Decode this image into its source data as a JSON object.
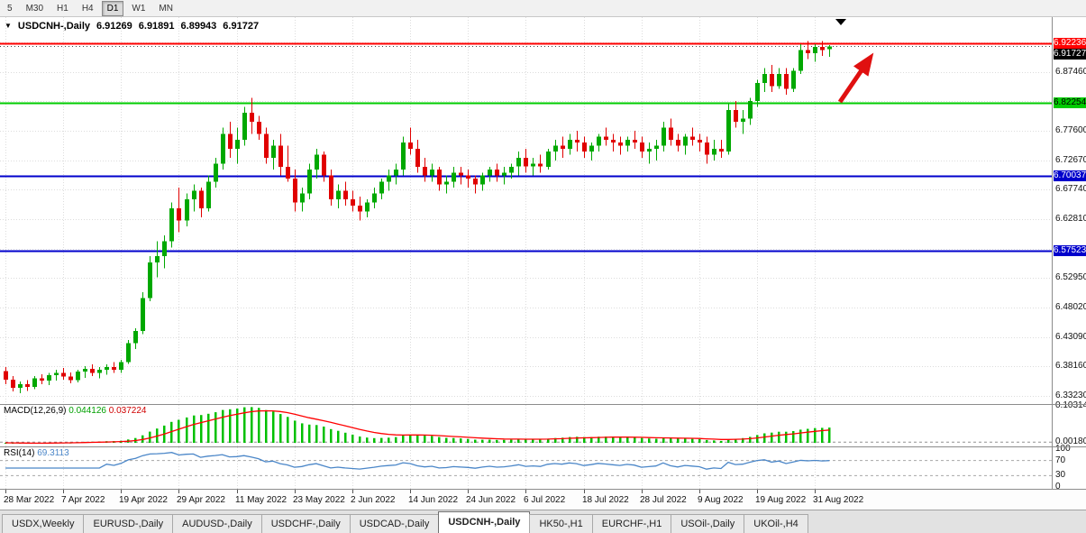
{
  "toolbar": {
    "timeframes": [
      {
        "label": "5",
        "active": false
      },
      {
        "label": "M30",
        "active": false
      },
      {
        "label": "H1",
        "active": false
      },
      {
        "label": "H4",
        "active": false
      },
      {
        "label": "D1",
        "active": true
      },
      {
        "label": "W1",
        "active": false
      },
      {
        "label": "MN",
        "active": false
      }
    ]
  },
  "chart": {
    "symbol_label": "USDCNH-,Daily",
    "ohlc": {
      "open": "6.91269",
      "high": "6.91891",
      "low": "6.89943",
      "close": "6.91727"
    },
    "levels": [
      {
        "label": "6.92236",
        "price": 6.92236,
        "line_color": "#ff0000",
        "line_width": 2,
        "dash": "",
        "badge_bg": "#ff0000",
        "badge_fg": "#ffffff",
        "name": "resistance-level"
      },
      {
        "label": "6.91727",
        "price": 6.91727,
        "line_color": "#404040",
        "line_width": 1,
        "dash": "1,3",
        "badge_bg": "#000000",
        "badge_fg": "#ffffff",
        "name": "bid-price"
      },
      {
        "label": "6.82254",
        "price": 6.82254,
        "line_color": "#00cc00",
        "line_width": 2,
        "dash": "",
        "badge_bg": "#00cc00",
        "badge_fg": "#000000",
        "name": "support-level-green"
      },
      {
        "label": "6.70037",
        "price": 6.70037,
        "line_color": "#0000cc",
        "line_width": 2,
        "dash": "",
        "badge_bg": "#0000cc",
        "badge_fg": "#ffffff",
        "name": "support-level-blue-1"
      },
      {
        "label": "6.57523",
        "price": 6.57523,
        "line_color": "#0000cc",
        "line_width": 2,
        "dash": "",
        "badge_bg": "#0000cc",
        "badge_fg": "#ffffff",
        "name": "support-level-blue-2"
      }
    ],
    "price_axis": {
      "labels": [
        "6.87460",
        "6.77600",
        "6.72670",
        "6.67740",
        "6.62810",
        "6.52950",
        "6.48020",
        "6.43090",
        "6.38160",
        "6.33230"
      ],
      "gridlines": [
        6.9239,
        6.8746,
        6.8253,
        6.776,
        6.7267,
        6.6774,
        6.6281,
        6.5788,
        6.5295,
        6.4802,
        6.4309,
        6.3816,
        6.3323
      ]
    }
  },
  "macd": {
    "label": "MACD(12,26,9)",
    "value1": "0.044126",
    "value2": "0.037224",
    "axis": [
      {
        "text": "0.10314",
        "v": 0.10314
      },
      {
        "text": "0.00180",
        "v": 0.0018
      }
    ],
    "zero_dash_value": 0.0018
  },
  "rsi": {
    "label": "RSI(14)",
    "value": "69.3113",
    "axis": [
      {
        "text": "100",
        "v": 100
      },
      {
        "text": "70",
        "v": 70
      },
      {
        "text": "30",
        "v": 30
      },
      {
        "text": "0",
        "v": 0
      }
    ],
    "dashed_levels": [
      70,
      30
    ]
  },
  "timeline": {
    "labels": [
      "28 Mar 2022",
      "7 Apr 2022",
      "19 Apr 2022",
      "29 Apr 2022",
      "11 May 2022",
      "23 May 2022",
      "2 Jun 2022",
      "14 Jun 2022",
      "24 Jun 2022",
      "6 Jul 2022",
      "18 Jul 2022",
      "28 Jul 2022",
      "9 Aug 2022",
      "19 Aug 2022",
      "31 Aug 2022"
    ],
    "indices": [
      0,
      8,
      16,
      24,
      32,
      40,
      48,
      56,
      64,
      72,
      80,
      88,
      96,
      104,
      112
    ]
  },
  "tabs": [
    {
      "label": "USDX,Weekly",
      "selected": false
    },
    {
      "label": "EURUSD-,Daily",
      "selected": false
    },
    {
      "label": "AUDUSD-,Daily",
      "selected": false
    },
    {
      "label": "USDCHF-,Daily",
      "selected": false
    },
    {
      "label": "USDCAD-,Daily",
      "selected": false
    },
    {
      "label": "USDCNH-,Daily",
      "selected": true
    },
    {
      "label": "HK50-,H1",
      "selected": false
    },
    {
      "label": "EURCHF-,H1",
      "selected": false
    },
    {
      "label": "USOil-,Daily",
      "selected": false
    },
    {
      "label": "UKOil-,H4",
      "selected": false
    }
  ],
  "colors": {
    "bull": "#00a800",
    "bear": "#e00000",
    "grid": "#dcdcdc",
    "macd_hist": "#00c000",
    "macd_signal": "#ff0000",
    "rsi_line": "#4a86c8",
    "arrow": "#e01010",
    "end_marker": "#000000"
  },
  "annotations": {
    "arrow_up_right": true,
    "chart_end_marker": true
  },
  "chart_data": {
    "type": "candlestick",
    "symbol": "USDCNH-",
    "timeframe": "Daily",
    "title": "USDCNH-,Daily 6.91269 6.91891 6.89943 6.91727",
    "y_range": [
      6.319,
      6.966
    ],
    "levels": [
      6.92236,
      6.82254,
      6.70037,
      6.57523
    ],
    "current": {
      "open": 6.91269,
      "high": 6.91891,
      "low": 6.89943,
      "close": 6.91727
    },
    "x_labels": [
      "28 Mar 2022",
      "7 Apr 2022",
      "19 Apr 2022",
      "29 Apr 2022",
      "11 May 2022",
      "23 May 2022",
      "2 Jun 2022",
      "14 Jun 2022",
      "24 Jun 2022",
      "6 Jul 2022",
      "18 Jul 2022",
      "28 Jul 2022",
      "9 Aug 2022",
      "19 Aug 2022",
      "31 Aug 2022"
    ],
    "x_label_indices": [
      0,
      8,
      16,
      24,
      32,
      40,
      48,
      56,
      64,
      72,
      80,
      88,
      96,
      104,
      112
    ],
    "indicators": [
      {
        "type": "MACD",
        "params": [
          12,
          26,
          9
        ],
        "current": [
          0.044126,
          0.037224
        ],
        "y_axis": [
          0.10314,
          0.0018
        ]
      },
      {
        "type": "RSI",
        "params": [
          14
        ],
        "current": 69.3113,
        "y_axis": [
          100,
          70,
          30,
          0
        ]
      }
    ],
    "candles": [
      [
        6.374,
        6.381,
        6.352,
        6.36
      ],
      [
        6.36,
        6.366,
        6.34,
        6.346
      ],
      [
        6.346,
        6.357,
        6.337,
        6.352
      ],
      [
        6.352,
        6.359,
        6.341,
        6.348
      ],
      [
        6.348,
        6.366,
        6.344,
        6.362
      ],
      [
        6.362,
        6.369,
        6.352,
        6.358
      ],
      [
        6.358,
        6.371,
        6.351,
        6.367
      ],
      [
        6.367,
        6.376,
        6.358,
        6.371
      ],
      [
        6.371,
        6.379,
        6.36,
        6.365
      ],
      [
        6.365,
        6.372,
        6.354,
        6.359
      ],
      [
        6.359,
        6.376,
        6.355,
        6.373
      ],
      [
        6.373,
        6.382,
        6.363,
        6.378
      ],
      [
        6.378,
        6.385,
        6.366,
        6.371
      ],
      [
        6.371,
        6.381,
        6.362,
        6.376
      ],
      [
        6.376,
        6.385,
        6.368,
        6.381
      ],
      [
        6.381,
        6.389,
        6.371,
        6.376
      ],
      [
        6.376,
        6.393,
        6.371,
        6.389
      ],
      [
        6.389,
        6.426,
        6.386,
        6.421
      ],
      [
        6.421,
        6.446,
        6.411,
        6.441
      ],
      [
        6.441,
        6.506,
        6.436,
        6.496
      ],
      [
        6.496,
        6.566,
        6.491,
        6.556
      ],
      [
        6.556,
        6.591,
        6.531,
        6.566
      ],
      [
        6.566,
        6.601,
        6.546,
        6.591
      ],
      [
        6.591,
        6.656,
        6.581,
        6.646
      ],
      [
        6.646,
        6.681,
        6.606,
        6.626
      ],
      [
        6.626,
        6.671,
        6.616,
        6.661
      ],
      [
        6.661,
        6.686,
        6.641,
        6.676
      ],
      [
        6.676,
        6.681,
        6.631,
        6.646
      ],
      [
        6.646,
        6.701,
        6.641,
        6.691
      ],
      [
        6.691,
        6.731,
        6.681,
        6.721
      ],
      [
        6.721,
        6.781,
        6.711,
        6.771
      ],
      [
        6.771,
        6.791,
        6.731,
        6.746
      ],
      [
        6.746,
        6.781,
        6.721,
        6.761
      ],
      [
        6.761,
        6.816,
        6.751,
        6.806
      ],
      [
        6.806,
        6.831,
        6.771,
        6.791
      ],
      [
        6.791,
        6.801,
        6.761,
        6.771
      ],
      [
        6.771,
        6.781,
        6.721,
        6.731
      ],
      [
        6.731,
        6.761,
        6.711,
        6.751
      ],
      [
        6.751,
        6.771,
        6.701,
        6.716
      ],
      [
        6.716,
        6.751,
        6.691,
        6.696
      ],
      [
        6.696,
        6.711,
        6.641,
        6.656
      ],
      [
        6.656,
        6.681,
        6.641,
        6.671
      ],
      [
        6.671,
        6.721,
        6.661,
        6.711
      ],
      [
        6.711,
        6.746,
        6.696,
        6.736
      ],
      [
        6.736,
        6.741,
        6.691,
        6.701
      ],
      [
        6.701,
        6.711,
        6.651,
        6.661
      ],
      [
        6.661,
        6.686,
        6.646,
        6.676
      ],
      [
        6.676,
        6.691,
        6.651,
        6.661
      ],
      [
        6.661,
        6.676,
        6.641,
        6.651
      ],
      [
        6.651,
        6.666,
        6.626,
        6.641
      ],
      [
        6.641,
        6.661,
        6.631,
        6.656
      ],
      [
        6.656,
        6.681,
        6.646,
        6.671
      ],
      [
        6.671,
        6.696,
        6.661,
        6.691
      ],
      [
        6.691,
        6.711,
        6.676,
        6.701
      ],
      [
        6.701,
        6.721,
        6.686,
        6.711
      ],
      [
        6.711,
        6.766,
        6.701,
        6.756
      ],
      [
        6.756,
        6.781,
        6.736,
        6.746
      ],
      [
        6.746,
        6.761,
        6.706,
        6.716
      ],
      [
        6.716,
        6.731,
        6.691,
        6.701
      ],
      [
        6.701,
        6.721,
        6.691,
        6.711
      ],
      [
        6.711,
        6.716,
        6.676,
        6.686
      ],
      [
        6.686,
        6.701,
        6.671,
        6.691
      ],
      [
        6.691,
        6.716,
        6.681,
        6.706
      ],
      [
        6.706,
        6.716,
        6.686,
        6.701
      ],
      [
        6.701,
        6.711,
        6.681,
        6.696
      ],
      [
        6.696,
        6.701,
        6.671,
        6.686
      ],
      [
        6.686,
        6.706,
        6.676,
        6.701
      ],
      [
        6.701,
        6.716,
        6.691,
        6.711
      ],
      [
        6.711,
        6.721,
        6.691,
        6.701
      ],
      [
        6.701,
        6.716,
        6.686,
        6.706
      ],
      [
        6.706,
        6.721,
        6.696,
        6.716
      ],
      [
        6.716,
        6.741,
        6.701,
        6.731
      ],
      [
        6.731,
        6.746,
        6.706,
        6.716
      ],
      [
        6.716,
        6.731,
        6.701,
        6.721
      ],
      [
        6.721,
        6.736,
        6.706,
        6.716
      ],
      [
        6.716,
        6.746,
        6.711,
        6.741
      ],
      [
        6.741,
        6.761,
        6.726,
        6.751
      ],
      [
        6.751,
        6.766,
        6.731,
        6.746
      ],
      [
        6.746,
        6.771,
        6.736,
        6.761
      ],
      [
        6.761,
        6.776,
        6.741,
        6.756
      ],
      [
        6.756,
        6.766,
        6.731,
        6.741
      ],
      [
        6.741,
        6.756,
        6.726,
        6.751
      ],
      [
        6.751,
        6.771,
        6.741,
        6.766
      ],
      [
        6.766,
        6.781,
        6.751,
        6.761
      ],
      [
        6.761,
        6.771,
        6.741,
        6.756
      ],
      [
        6.756,
        6.766,
        6.736,
        6.751
      ],
      [
        6.751,
        6.766,
        6.741,
        6.761
      ],
      [
        6.761,
        6.776,
        6.746,
        6.756
      ],
      [
        6.756,
        6.766,
        6.731,
        6.741
      ],
      [
        6.741,
        6.756,
        6.721,
        6.746
      ],
      [
        6.746,
        6.761,
        6.726,
        6.751
      ],
      [
        6.751,
        6.791,
        6.741,
        6.781
      ],
      [
        6.781,
        6.796,
        6.751,
        6.761
      ],
      [
        6.761,
        6.771,
        6.741,
        6.751
      ],
      [
        6.751,
        6.771,
        6.736,
        6.766
      ],
      [
        6.766,
        6.781,
        6.751,
        6.761
      ],
      [
        6.761,
        6.771,
        6.741,
        6.756
      ],
      [
        6.756,
        6.766,
        6.721,
        6.736
      ],
      [
        6.736,
        6.761,
        6.726,
        6.746
      ],
      [
        6.746,
        6.761,
        6.731,
        6.741
      ],
      [
        6.741,
        6.821,
        6.736,
        6.811
      ],
      [
        6.811,
        6.826,
        6.781,
        6.791
      ],
      [
        6.791,
        6.811,
        6.771,
        6.796
      ],
      [
        6.796,
        6.831,
        6.786,
        6.826
      ],
      [
        6.826,
        6.861,
        6.816,
        6.856
      ],
      [
        6.856,
        6.881,
        6.841,
        6.871
      ],
      [
        6.871,
        6.886,
        6.841,
        6.851
      ],
      [
        6.851,
        6.881,
        6.846,
        6.871
      ],
      [
        6.871,
        6.881,
        6.836,
        6.846
      ],
      [
        6.846,
        6.881,
        6.841,
        6.876
      ],
      [
        6.876,
        6.921,
        6.871,
        6.911
      ],
      [
        6.911,
        6.926,
        6.896,
        6.906
      ],
      [
        6.906,
        6.921,
        6.891,
        6.916
      ],
      [
        6.916,
        6.926,
        6.901,
        6.911
      ],
      [
        6.91269,
        6.91891,
        6.89943,
        6.91727
      ]
    ]
  }
}
